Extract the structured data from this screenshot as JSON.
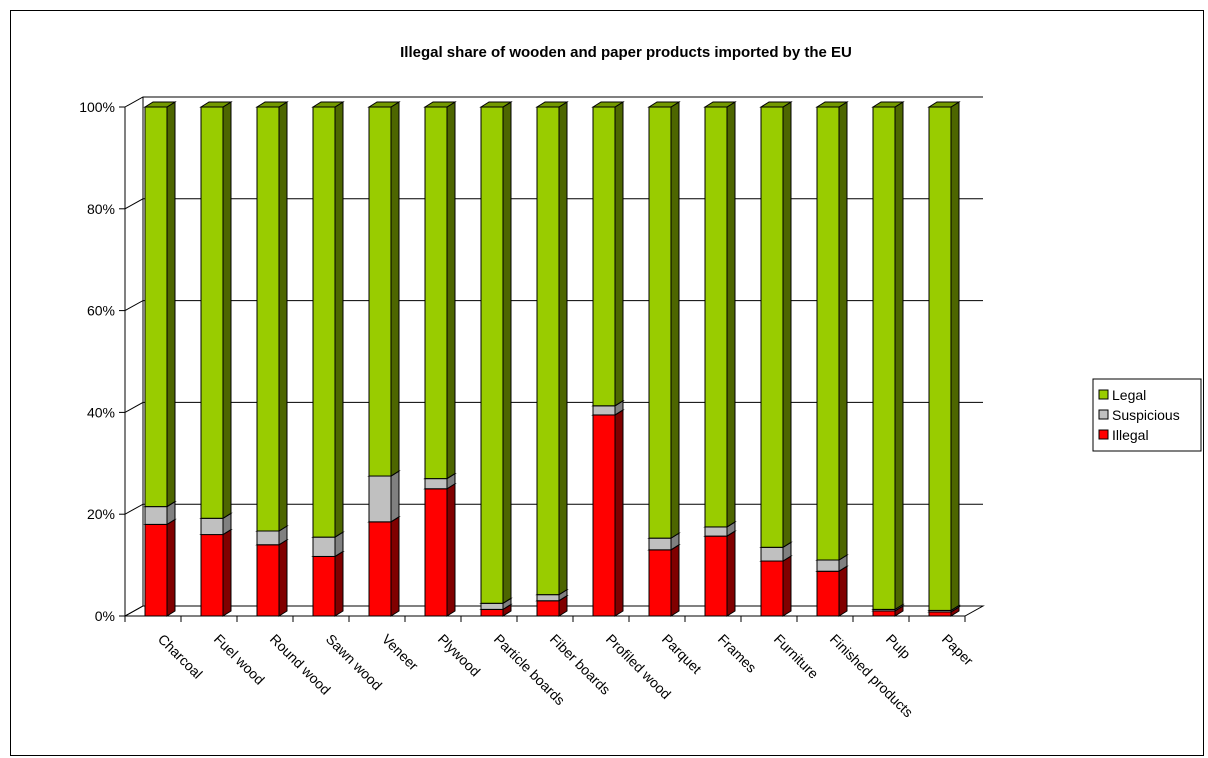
{
  "chart_data": {
    "type": "bar",
    "stacked": true,
    "percent_stacked": true,
    "title": "Illegal share of wooden and paper products imported by the EU",
    "xlabel": "",
    "ylabel": "",
    "ylim": [
      0,
      100
    ],
    "yticks": [
      "0%",
      "20%",
      "40%",
      "60%",
      "80%",
      "100%"
    ],
    "grid": true,
    "legend_position": "right",
    "categories": [
      "Charcoal",
      "Fuel wood",
      "Round wood",
      "Sawn wood",
      "Veneer",
      "Plywood",
      "Particle boards",
      "Fiber boards",
      "Profiled wood",
      "Parquet",
      "Frames",
      "Furniture",
      "Finished products",
      "Pulp",
      "Paper"
    ],
    "series": [
      {
        "name": "Illegal",
        "color": "#ff0000",
        "values": [
          18,
          16,
          14,
          11.7,
          18.5,
          25,
          1.3,
          3,
          39.5,
          13,
          15.7,
          10.8,
          8.8,
          1,
          0.8
        ]
      },
      {
        "name": "Suspicious",
        "color": "#c0c0c0",
        "values": [
          3.5,
          3.2,
          2.7,
          3.8,
          9,
          2,
          1.2,
          1.2,
          1.8,
          2.3,
          1.8,
          2.7,
          2.2,
          0.3,
          0.3
        ]
      },
      {
        "name": "Legal",
        "color": "#99cc00",
        "values": [
          78.5,
          80.8,
          83.3,
          84.5,
          72.5,
          73,
          97.5,
          95.8,
          58.7,
          84.7,
          82.5,
          86.5,
          89,
          98.7,
          98.9
        ]
      }
    ],
    "legend_order": [
      "Legal",
      "Suspicious",
      "Illegal"
    ]
  }
}
